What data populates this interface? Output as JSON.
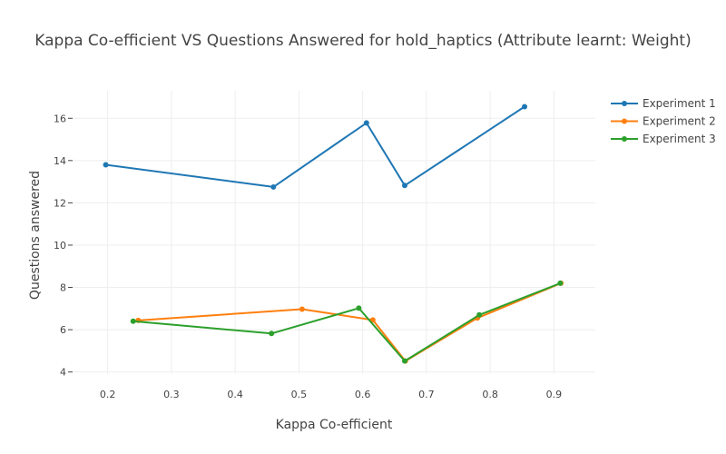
{
  "chart_data": {
    "type": "line",
    "title": "Kappa Co-efficient VS Questions Answered for hold_haptics (Attribute learnt: Weight)",
    "xlabel": "Kappa Co-efficient",
    "ylabel": "Questions answered",
    "xlim": [
      0.145,
      0.965
    ],
    "ylim": [
      3.9,
      17.3
    ],
    "xticks": [
      0.2,
      0.3,
      0.4,
      0.5,
      0.6,
      0.7,
      0.8,
      0.9
    ],
    "yticks": [
      4,
      6,
      8,
      10,
      12,
      14,
      16
    ],
    "grid": true,
    "legend_position": "top-right",
    "series": [
      {
        "name": "Experiment 1",
        "color": "#1f77b4",
        "x": [
          0.197,
          0.46,
          0.606,
          0.666,
          0.854
        ],
        "y": [
          13.8,
          12.75,
          15.78,
          12.82,
          16.55
        ]
      },
      {
        "name": "Experiment 2",
        "color": "#ff7f0e",
        "x": [
          0.248,
          0.505,
          0.616,
          0.667,
          0.78,
          0.911
        ],
        "y": [
          6.44,
          6.97,
          6.46,
          4.52,
          6.55,
          8.2
        ]
      },
      {
        "name": "Experiment 3",
        "color": "#2ca02c",
        "x": [
          0.24,
          0.457,
          0.594,
          0.666,
          0.783,
          0.91
        ],
        "y": [
          6.4,
          5.82,
          7.02,
          4.52,
          6.7,
          8.2
        ]
      }
    ]
  }
}
